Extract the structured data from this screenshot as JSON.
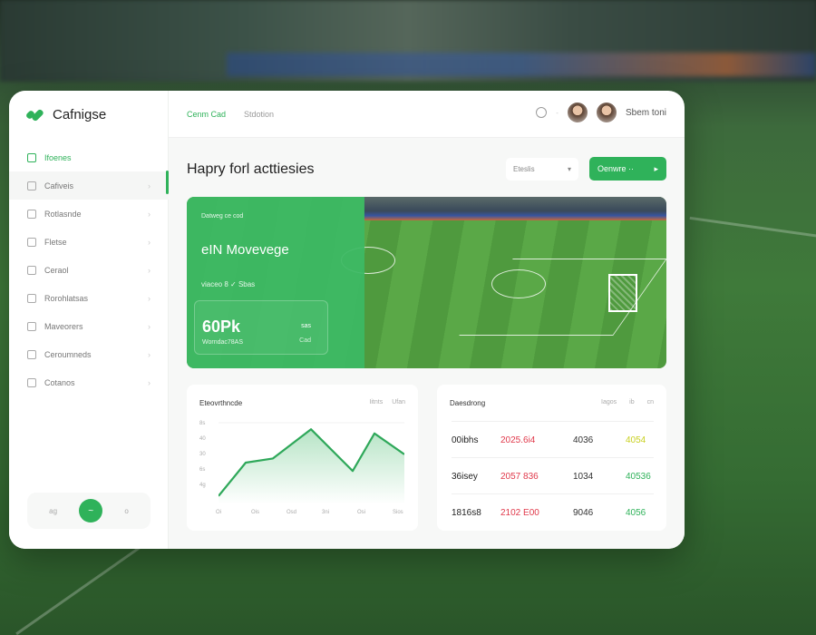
{
  "brand": {
    "name": "Cafnigse",
    "accent": "#2fb25a"
  },
  "header": {
    "tabs": [
      {
        "label": "Cenm Cad",
        "active": true
      },
      {
        "label": "Stdotion",
        "active": false
      }
    ],
    "user_name": "Sbem toni"
  },
  "sidebar": {
    "items": [
      {
        "label": "Ifoenes",
        "icon": "calendar-icon"
      },
      {
        "label": "Cafiveis",
        "icon": "folder-icon"
      },
      {
        "label": "Rotlasnde",
        "icon": "chart-icon"
      },
      {
        "label": "Fletse",
        "icon": "file-icon"
      },
      {
        "label": "Ceraol",
        "icon": "bulb-icon"
      },
      {
        "label": "Rorohlatsas",
        "icon": "clipboard-icon"
      },
      {
        "label": "Maveorers",
        "icon": "money-icon"
      },
      {
        "label": "Ceroumneds",
        "icon": "user-icon"
      },
      {
        "label": "Cotanos",
        "icon": "settings-icon"
      }
    ],
    "footer": {
      "left": "ag",
      "right": "o"
    }
  },
  "main": {
    "title": "Hapry forl acttiesies",
    "select": {
      "value": "Eteslis"
    },
    "button": {
      "label": "Oenwre ··"
    },
    "hero": {
      "small": "Datweg ce cod",
      "headline": "eIN Movevege",
      "sub": "viaceo 8  ✓  Sbas",
      "stat_value": "60Pk",
      "stat_label": "Worndac78AS",
      "stat_r1": "sas",
      "stat_r2": "Cad"
    },
    "chart_card": {
      "title": "Eteovrthncde",
      "links": [
        "Iitnts",
        "Ufan"
      ],
      "y_ticks": [
        "8s",
        "40",
        "30",
        "6s",
        "4g"
      ],
      "x_ticks": [
        "Oi",
        "Ois",
        "Osd",
        "3ni",
        "Osi",
        "Sios"
      ],
      "values": [
        2,
        10,
        11,
        18,
        8,
        17,
        12
      ]
    },
    "table_card": {
      "title": "Daesdrong",
      "headers": [
        "Iagos",
        "ib",
        "cn"
      ],
      "rows": [
        {
          "name": "00ibhs",
          "a": "2025.6i4",
          "b": "4036",
          "c": "4054"
        },
        {
          "name": "36isey",
          "a": "2057 836",
          "b": "1034",
          "c": "40536"
        },
        {
          "name": "1816s8",
          "a": "2102 E00",
          "b": "9046",
          "c": "4056"
        }
      ],
      "colors": {
        "a": "#e0384a",
        "c_first": "#c8d020",
        "c": "#2fb25a"
      }
    }
  }
}
